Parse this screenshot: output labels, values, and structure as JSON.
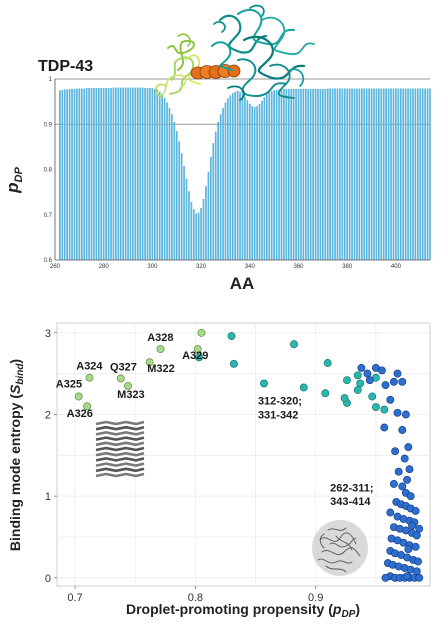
{
  "colors": {
    "bar": "#5bb5dc",
    "bar_dark": "#2e8fc6",
    "light_green": "#a8d88c",
    "teal": "#2bb7b0",
    "blue": "#2c6fcf",
    "grid_line": "#9a9a9a"
  },
  "chart_data": [
    {
      "type": "bar",
      "title": "TDP-43",
      "xlabel": "AA",
      "ylabel": "pDP",
      "ylabel_main": "p",
      "ylabel_sub": "DP",
      "xlim": [
        260,
        414
      ],
      "ylim": [
        0.6,
        1.0
      ],
      "xticks": [
        260,
        280,
        300,
        320,
        340,
        360,
        380,
        400
      ],
      "yticks": [
        0.6,
        0.7,
        0.8,
        0.9,
        1
      ],
      "ytick_labels": [
        "0.6",
        "0.7",
        "0.8",
        "0.9",
        "1"
      ],
      "reference_lines": [
        0.9,
        1.0
      ],
      "residue_start": 262,
      "values": [
        0.975,
        0.976,
        0.977,
        0.977,
        0.978,
        0.978,
        0.978,
        0.979,
        0.979,
        0.979,
        0.979,
        0.98,
        0.98,
        0.98,
        0.98,
        0.98,
        0.98,
        0.98,
        0.98,
        0.98,
        0.98,
        0.98,
        0.981,
        0.981,
        0.981,
        0.981,
        0.981,
        0.981,
        0.981,
        0.981,
        0.981,
        0.981,
        0.981,
        0.981,
        0.981,
        0.98,
        0.98,
        0.98,
        0.98,
        0.978,
        0.976,
        0.972,
        0.966,
        0.958,
        0.948,
        0.936,
        0.922,
        0.905,
        0.885,
        0.862,
        0.836,
        0.808,
        0.78,
        0.752,
        0.728,
        0.712,
        0.703,
        0.705,
        0.715,
        0.735,
        0.763,
        0.795,
        0.828,
        0.858,
        0.884,
        0.905,
        0.922,
        0.936,
        0.948,
        0.957,
        0.964,
        0.969,
        0.972,
        0.974,
        0.972,
        0.968,
        0.961,
        0.953,
        0.945,
        0.94,
        0.938,
        0.94,
        0.945,
        0.952,
        0.96,
        0.966,
        0.97,
        0.973,
        0.975,
        0.976,
        0.977,
        0.977,
        0.978,
        0.978,
        0.978,
        0.978,
        0.978,
        0.978,
        0.978,
        0.978,
        0.978,
        0.978,
        0.978,
        0.978,
        0.978,
        0.978,
        0.978,
        0.978,
        0.978,
        0.978,
        0.979,
        0.979,
        0.979,
        0.979,
        0.979,
        0.979,
        0.979,
        0.979,
        0.979,
        0.979,
        0.979,
        0.979,
        0.979,
        0.979,
        0.979,
        0.979,
        0.979,
        0.979,
        0.979,
        0.979,
        0.979,
        0.979,
        0.979,
        0.979,
        0.979,
        0.979,
        0.979,
        0.979,
        0.979,
        0.979,
        0.979,
        0.979,
        0.979,
        0.979,
        0.979,
        0.979,
        0.979,
        0.979,
        0.979,
        0.979,
        0.979,
        0.979,
        0.979
      ]
    },
    {
      "type": "scatter",
      "xlabel": "Droplet-promoting propensity (pDP)",
      "xlabel_main": "Droplet-promoting propensity (",
      "xlabel_sub_main": "p",
      "xlabel_sub": "DP",
      "xlabel_end": ")",
      "ylabel": "Binding mode entropy (Sbind)",
      "ylabel_main": "Binding mode entropy (",
      "ylabel_sub_main": "S",
      "ylabel_sub": "bind",
      "ylabel_end": ")",
      "xlim": [
        0.685,
        0.995
      ],
      "ylim": [
        -0.1,
        3.12
      ],
      "xticks": [
        0.7,
        0.8,
        0.9
      ],
      "xtick_labels": [
        "0.7",
        "0.8",
        "0.9"
      ],
      "yticks": [
        0,
        1,
        2,
        3
      ],
      "grid": true,
      "points": {
        "light_green": [
          [
            0.703,
            2.22
          ],
          [
            0.712,
            2.45
          ],
          [
            0.71,
            2.1
          ],
          [
            0.738,
            2.44
          ],
          [
            0.744,
            2.35
          ],
          [
            0.762,
            2.64
          ],
          [
            0.771,
            2.8
          ],
          [
            0.805,
            3.0
          ],
          [
            0.802,
            2.8
          ]
        ],
        "teal": [
          [
            0.803,
            2.7
          ],
          [
            0.83,
            2.96
          ],
          [
            0.832,
            2.62
          ],
          [
            0.882,
            2.86
          ],
          [
            0.857,
            2.38
          ],
          [
            0.91,
            2.63
          ],
          [
            0.89,
            2.33
          ],
          [
            0.908,
            2.26
          ],
          [
            0.926,
            2.42
          ],
          [
            0.95,
            2.45
          ],
          [
            0.935,
            2.3
          ],
          [
            0.937,
            2.38
          ],
          [
            0.926,
            2.14
          ],
          [
            0.947,
            2.22
          ],
          [
            0.95,
            2.09
          ],
          [
            0.957,
            2.06
          ],
          [
            0.935,
            2.48
          ],
          [
            0.924,
            2.2
          ]
        ],
        "blue": [
          [
            0.938,
            2.57
          ],
          [
            0.943,
            2.5
          ],
          [
            0.95,
            2.57
          ],
          [
            0.955,
            2.54
          ],
          [
            0.945,
            2.42
          ],
          [
            0.958,
            2.36
          ],
          [
            0.965,
            2.4
          ],
          [
            0.972,
            2.4
          ],
          [
            0.962,
            2.18
          ],
          [
            0.968,
            2.02
          ],
          [
            0.975,
            2.0
          ],
          [
            0.957,
            1.84
          ],
          [
            0.972,
            1.81
          ],
          [
            0.977,
            1.6
          ],
          [
            0.966,
            1.55
          ],
          [
            0.974,
            1.46
          ],
          [
            0.978,
            1.33
          ],
          [
            0.969,
            1.3
          ],
          [
            0.965,
            1.15
          ],
          [
            0.975,
            1.04
          ],
          [
            0.979,
            1.0
          ],
          [
            0.967,
            0.93
          ],
          [
            0.971,
            0.9
          ],
          [
            0.975,
            0.88
          ],
          [
            0.979,
            0.85
          ],
          [
            0.983,
            0.82
          ],
          [
            0.962,
            0.8
          ],
          [
            0.968,
            0.75
          ],
          [
            0.973,
            0.72
          ],
          [
            0.978,
            0.7
          ],
          [
            0.982,
            0.68
          ],
          [
            0.965,
            0.62
          ],
          [
            0.97,
            0.6
          ],
          [
            0.975,
            0.58
          ],
          [
            0.98,
            0.55
          ],
          [
            0.984,
            0.52
          ],
          [
            0.963,
            0.48
          ],
          [
            0.968,
            0.46
          ],
          [
            0.973,
            0.43
          ],
          [
            0.978,
            0.4
          ],
          [
            0.983,
            0.38
          ],
          [
            0.962,
            0.33
          ],
          [
            0.966,
            0.3
          ],
          [
            0.971,
            0.28
          ],
          [
            0.976,
            0.25
          ],
          [
            0.981,
            0.22
          ],
          [
            0.985,
            0.2
          ],
          [
            0.96,
            0.18
          ],
          [
            0.964,
            0.16
          ],
          [
            0.969,
            0.14
          ],
          [
            0.974,
            0.12
          ],
          [
            0.979,
            0.1
          ],
          [
            0.984,
            0.08
          ],
          [
            0.962,
            0.02
          ],
          [
            0.966,
            0.0
          ],
          [
            0.97,
            0.0
          ],
          [
            0.974,
            0.0
          ],
          [
            0.978,
            0.0
          ],
          [
            0.982,
            0.0
          ],
          [
            0.986,
            0.0
          ],
          [
            0.958,
            0.0
          ],
          [
            0.976,
            1.2
          ],
          [
            0.972,
            1.12
          ],
          [
            0.98,
            0.64
          ],
          [
            0.977,
            0.35
          ],
          [
            0.986,
            0.6
          ],
          [
            0.968,
            2.5
          ],
          [
            0.976,
            0.02
          ]
        ]
      },
      "annotations": [
        {
          "text": "A324",
          "x": 0.701,
          "y": 2.55
        },
        {
          "text": "A325",
          "x": 0.684,
          "y": 2.33
        },
        {
          "text": "A326",
          "x": 0.693,
          "y": 1.97
        },
        {
          "text": "Q327",
          "x": 0.729,
          "y": 2.54
        },
        {
          "text": "M323",
          "x": 0.735,
          "y": 2.2
        },
        {
          "text": "M322",
          "x": 0.76,
          "y": 2.52
        },
        {
          "text": "A328",
          "x": 0.76,
          "y": 2.9
        },
        {
          "text": "A329",
          "x": 0.789,
          "y": 2.68
        },
        {
          "text": "312-320;",
          "x": 0.852,
          "y": 2.12
        },
        {
          "text": "331-342",
          "x": 0.852,
          "y": 1.95
        },
        {
          "text": "262-311;",
          "x": 0.912,
          "y": 1.06
        },
        {
          "text": "343-414",
          "x": 0.912,
          "y": 0.89
        }
      ]
    }
  ]
}
